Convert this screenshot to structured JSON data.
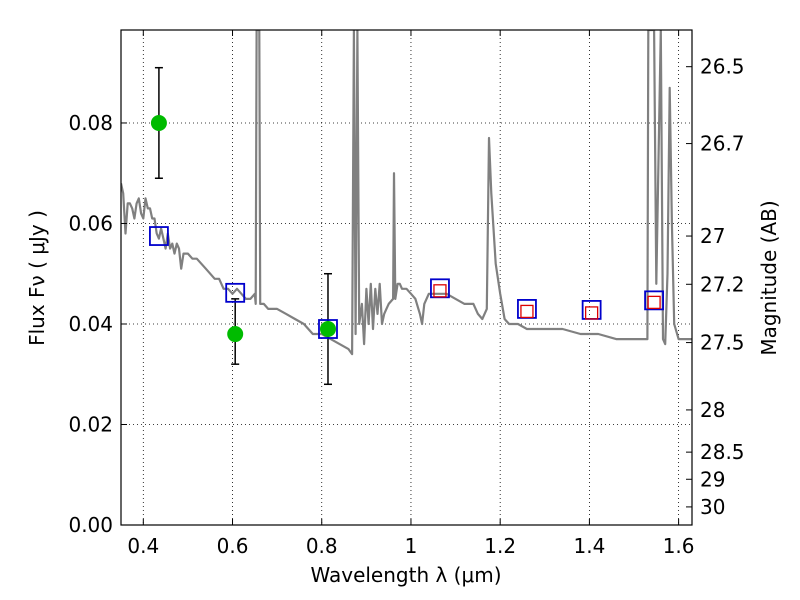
{
  "chart_data": {
    "type": "scatter",
    "title": "",
    "xlabel": "Wavelength  λ (μm)",
    "ylabel": "Flux  Fν  ( μJy )",
    "y2label": "Magnitude (AB)",
    "xlim": [
      0.35,
      1.63
    ],
    "ylim": [
      0.0,
      0.0985
    ],
    "grid": true,
    "x_ticks": [
      0.4,
      0.6,
      0.8,
      1.0,
      1.2,
      1.4,
      1.6
    ],
    "x_tick_labels": [
      "0.4",
      "0.6",
      "0.8",
      "1",
      "1.2",
      "1.4",
      "1.6"
    ],
    "y_ticks": [
      0.0,
      0.02,
      0.04,
      0.06,
      0.08
    ],
    "y_tick_labels": [
      "0.00",
      "0.02",
      "0.04",
      "0.06",
      "0.08"
    ],
    "y2_ticks": [
      {
        "label": "26.5",
        "flux": 0.0912
      },
      {
        "label": "26.7",
        "flux": 0.0759
      },
      {
        "label": "27",
        "flux": 0.0575
      },
      {
        "label": "27.2",
        "flux": 0.0479
      },
      {
        "label": "27.5",
        "flux": 0.0363
      },
      {
        "label": "28",
        "flux": 0.0229
      },
      {
        "label": "28.5",
        "flux": 0.0145
      },
      {
        "label": "29",
        "flux": 0.0091
      },
      {
        "label": "30",
        "flux": 0.0036
      }
    ],
    "series": [
      {
        "type": "line",
        "color": "#808080",
        "points": [
          [
            0.35,
            0.068
          ],
          [
            0.355,
            0.066
          ],
          [
            0.36,
            0.058
          ],
          [
            0.365,
            0.064
          ],
          [
            0.37,
            0.064
          ],
          [
            0.375,
            0.063
          ],
          [
            0.38,
            0.061
          ],
          [
            0.385,
            0.064
          ],
          [
            0.39,
            0.065
          ],
          [
            0.395,
            0.062
          ],
          [
            0.4,
            0.061
          ],
          [
            0.405,
            0.065
          ],
          [
            0.41,
            0.063
          ],
          [
            0.415,
            0.063
          ],
          [
            0.42,
            0.061
          ],
          [
            0.425,
            0.061
          ],
          [
            0.43,
            0.058
          ],
          [
            0.435,
            0.057
          ],
          [
            0.44,
            0.059
          ],
          [
            0.445,
            0.057
          ],
          [
            0.45,
            0.055
          ],
          [
            0.455,
            0.058
          ],
          [
            0.46,
            0.055
          ],
          [
            0.465,
            0.056
          ],
          [
            0.47,
            0.054
          ],
          [
            0.475,
            0.056
          ],
          [
            0.48,
            0.055
          ],
          [
            0.485,
            0.051
          ],
          [
            0.49,
            0.054
          ],
          [
            0.5,
            0.054
          ],
          [
            0.51,
            0.053
          ],
          [
            0.52,
            0.053
          ],
          [
            0.53,
            0.052
          ],
          [
            0.54,
            0.051
          ],
          [
            0.55,
            0.05
          ],
          [
            0.56,
            0.049
          ],
          [
            0.57,
            0.049
          ],
          [
            0.58,
            0.047
          ],
          [
            0.59,
            0.047
          ],
          [
            0.6,
            0.046
          ],
          [
            0.61,
            0.047
          ],
          [
            0.62,
            0.046
          ],
          [
            0.63,
            0.045
          ],
          [
            0.64,
            0.045
          ],
          [
            0.65,
            0.046
          ],
          [
            0.652,
            0.044
          ],
          [
            0.654,
            0.0985
          ],
          [
            0.66,
            0.0985
          ],
          [
            0.662,
            0.044
          ],
          [
            0.67,
            0.044
          ],
          [
            0.68,
            0.043
          ],
          [
            0.7,
            0.043
          ],
          [
            0.72,
            0.042
          ],
          [
            0.74,
            0.041
          ],
          [
            0.76,
            0.04
          ],
          [
            0.78,
            0.038
          ],
          [
            0.8,
            0.038
          ],
          [
            0.82,
            0.037
          ],
          [
            0.84,
            0.036
          ],
          [
            0.86,
            0.035
          ],
          [
            0.868,
            0.034
          ],
          [
            0.872,
            0.0985
          ],
          [
            0.876,
            0.038
          ],
          [
            0.88,
            0.0985
          ],
          [
            0.884,
            0.04
          ],
          [
            0.89,
            0.044
          ],
          [
            0.895,
            0.036
          ],
          [
            0.9,
            0.047
          ],
          [
            0.905,
            0.04
          ],
          [
            0.91,
            0.048
          ],
          [
            0.915,
            0.039
          ],
          [
            0.92,
            0.047
          ],
          [
            0.925,
            0.042
          ],
          [
            0.93,
            0.048
          ],
          [
            0.935,
            0.04
          ],
          [
            0.94,
            0.042
          ],
          [
            0.945,
            0.043
          ],
          [
            0.95,
            0.044
          ],
          [
            0.96,
            0.045
          ],
          [
            0.962,
            0.07
          ],
          [
            0.965,
            0.045
          ],
          [
            0.97,
            0.048
          ],
          [
            0.975,
            0.048
          ],
          [
            0.98,
            0.047
          ],
          [
            0.99,
            0.047
          ],
          [
            1.0,
            0.046
          ],
          [
            1.01,
            0.045
          ],
          [
            1.02,
            0.042
          ],
          [
            1.025,
            0.04
          ],
          [
            1.03,
            0.044
          ],
          [
            1.04,
            0.046
          ],
          [
            1.06,
            0.046
          ],
          [
            1.08,
            0.046
          ],
          [
            1.1,
            0.045
          ],
          [
            1.12,
            0.044
          ],
          [
            1.14,
            0.044
          ],
          [
            1.15,
            0.042
          ],
          [
            1.16,
            0.041
          ],
          [
            1.17,
            0.043
          ],
          [
            1.175,
            0.077
          ],
          [
            1.18,
            0.066
          ],
          [
            1.19,
            0.052
          ],
          [
            1.2,
            0.046
          ],
          [
            1.21,
            0.041
          ],
          [
            1.22,
            0.04
          ],
          [
            1.24,
            0.04
          ],
          [
            1.26,
            0.039
          ],
          [
            1.28,
            0.039
          ],
          [
            1.3,
            0.039
          ],
          [
            1.34,
            0.039
          ],
          [
            1.38,
            0.038
          ],
          [
            1.42,
            0.038
          ],
          [
            1.46,
            0.037
          ],
          [
            1.5,
            0.037
          ],
          [
            1.53,
            0.037
          ],
          [
            1.532,
            0.0985
          ],
          [
            1.545,
            0.0985
          ],
          [
            1.55,
            0.048
          ],
          [
            1.56,
            0.0985
          ],
          [
            1.565,
            0.037
          ],
          [
            1.57,
            0.036
          ],
          [
            1.575,
            0.05
          ],
          [
            1.58,
            0.087
          ],
          [
            1.585,
            0.06
          ],
          [
            1.59,
            0.04
          ],
          [
            1.6,
            0.037
          ],
          [
            1.63,
            0.037
          ]
        ]
      },
      {
        "type": "errorbar",
        "color": "#00bb00",
        "marker": "circle",
        "points": [
          {
            "x": 0.435,
            "y": 0.08,
            "ylo": 0.069,
            "yhi": 0.091
          },
          {
            "x": 0.606,
            "y": 0.038,
            "ylo": 0.032,
            "yhi": 0.045
          },
          {
            "x": 0.814,
            "y": 0.039,
            "ylo": 0.028,
            "yhi": 0.05
          }
        ]
      },
      {
        "type": "scatter",
        "color": "#0000cc",
        "marker": "open-square",
        "points": [
          {
            "x": 0.435,
            "y": 0.0575
          },
          {
            "x": 0.606,
            "y": 0.0462
          },
          {
            "x": 0.814,
            "y": 0.039
          },
          {
            "x": 1.065,
            "y": 0.0471
          },
          {
            "x": 1.26,
            "y": 0.043
          },
          {
            "x": 1.405,
            "y": 0.0428
          },
          {
            "x": 1.545,
            "y": 0.0447
          }
        ]
      },
      {
        "type": "scatter",
        "color": "#dd0000",
        "marker": "open-square-small",
        "points": [
          {
            "x": 1.065,
            "y": 0.0466
          },
          {
            "x": 1.26,
            "y": 0.0425
          },
          {
            "x": 1.405,
            "y": 0.0422
          },
          {
            "x": 1.545,
            "y": 0.0443
          }
        ]
      }
    ]
  }
}
